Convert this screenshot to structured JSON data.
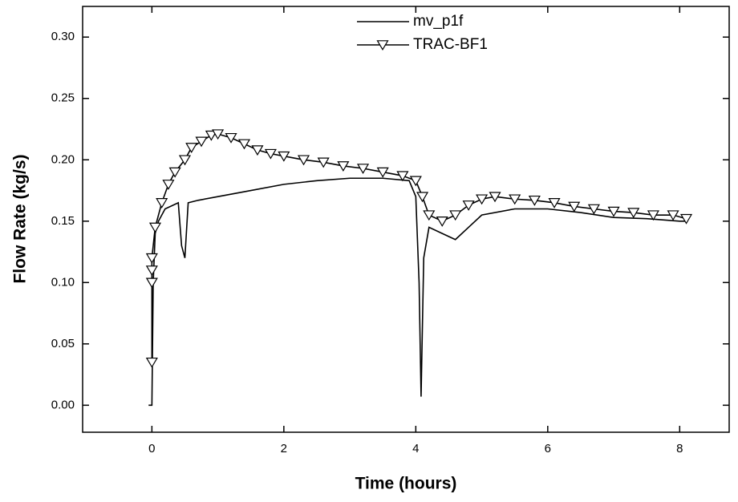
{
  "chart_data": {
    "type": "line",
    "x_label": "Time (hours)",
    "y_label": "Flow Rate (kg/s)",
    "xlim": [
      -1.05,
      8.75
    ],
    "ylim": [
      -0.022,
      0.325
    ],
    "xticks": [
      0,
      2,
      4,
      6,
      8
    ],
    "yticks": [
      {
        "value": 0,
        "label": "0.00"
      },
      {
        "value": 0.05,
        "label": "0.05"
      },
      {
        "value": 0.1,
        "label": "0.10"
      },
      {
        "value": 0.15,
        "label": "0.15"
      },
      {
        "value": 0.2,
        "label": "0.20"
      },
      {
        "value": 0.25,
        "label": "0.25"
      },
      {
        "value": 0.3,
        "label": "0.30"
      }
    ],
    "grid": false,
    "legend": "top",
    "series": [
      {
        "name": "mv_p1f",
        "color": "#000000",
        "marker": "none",
        "x": [
          -0.05,
          0,
          0.02,
          0.05,
          0.1,
          0.2,
          0.4,
          0.45,
          0.5,
          0.55,
          0.7,
          1,
          1.5,
          2,
          2.5,
          3,
          3.5,
          3.9,
          4.0,
          4.05,
          4.08,
          4.12,
          4.2,
          4.4,
          4.6,
          4.8,
          5,
          5.5,
          6,
          6.5,
          7,
          7.5,
          8,
          8.1
        ],
        "values": [
          0.0,
          0.0,
          0.1,
          0.14,
          0.15,
          0.16,
          0.165,
          0.13,
          0.12,
          0.165,
          0.167,
          0.17,
          0.175,
          0.18,
          0.183,
          0.185,
          0.185,
          0.183,
          0.17,
          0.1,
          0.007,
          0.12,
          0.145,
          0.14,
          0.135,
          0.145,
          0.155,
          0.16,
          0.16,
          0.157,
          0.153,
          0.152,
          0.15,
          0.15
        ]
      },
      {
        "name": "TRAC-BF1",
        "color": "#000000",
        "marker": "triangle-down",
        "x": [
          0,
          0,
          0,
          0,
          0.05,
          0.15,
          0.25,
          0.35,
          0.5,
          0.6,
          0.75,
          0.9,
          1.0,
          1.2,
          1.4,
          1.6,
          1.8,
          2,
          2.3,
          2.6,
          2.9,
          3.2,
          3.5,
          3.8,
          4.0,
          4.1,
          4.2,
          4.4,
          4.6,
          4.8,
          5.0,
          5.2,
          5.5,
          5.8,
          6.1,
          6.4,
          6.7,
          7,
          7.3,
          7.6,
          7.9,
          8.1
        ],
        "values": [
          0.035,
          0.1,
          0.11,
          0.12,
          0.145,
          0.165,
          0.18,
          0.19,
          0.2,
          0.21,
          0.215,
          0.22,
          0.221,
          0.218,
          0.213,
          0.208,
          0.205,
          0.203,
          0.2,
          0.198,
          0.195,
          0.193,
          0.19,
          0.187,
          0.183,
          0.17,
          0.155,
          0.15,
          0.155,
          0.163,
          0.168,
          0.17,
          0.168,
          0.167,
          0.165,
          0.162,
          0.16,
          0.158,
          0.157,
          0.155,
          0.155,
          0.152
        ]
      }
    ]
  }
}
